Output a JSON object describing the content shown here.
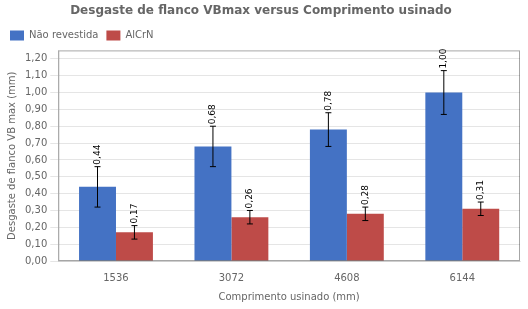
{
  "chart_data": {
    "type": "bar",
    "title": "Desgaste de flanco VBmax versus Comprimento usinado",
    "xlabel": "Comprimento usinado (mm)",
    "ylabel": "Desgaste de flanco VB max (mm)",
    "categories": [
      "1536",
      "3072",
      "4608",
      "6144"
    ],
    "series": [
      {
        "name": "Não revestida",
        "color": "#4472C4",
        "values": [
          0.44,
          0.68,
          0.78,
          1.0
        ],
        "errors": [
          0.12,
          0.12,
          0.1,
          0.13
        ],
        "value_labels": [
          "0,44",
          "0,68",
          "0,78",
          "1,00"
        ]
      },
      {
        "name": "AlCrN",
        "color": "#BE4B48",
        "values": [
          0.17,
          0.26,
          0.28,
          0.31
        ],
        "errors": [
          0.04,
          0.04,
          0.04,
          0.04
        ],
        "value_labels": [
          "0,17",
          "0,26",
          "0,28",
          "0,31"
        ]
      }
    ],
    "ylim": [
      0.0,
      1.25
    ],
    "yticks": [
      {
        "value": 0.0,
        "label": "0,00"
      },
      {
        "value": 0.1,
        "label": "0,10"
      },
      {
        "value": 0.2,
        "label": "0,20"
      },
      {
        "value": 0.3,
        "label": "0,30"
      },
      {
        "value": 0.4,
        "label": "0,40"
      },
      {
        "value": 0.5,
        "label": "0,50"
      },
      {
        "value": 0.6,
        "label": "0,60"
      },
      {
        "value": 0.7,
        "label": "0,70"
      },
      {
        "value": 0.8,
        "label": "0,80"
      },
      {
        "value": 0.9,
        "label": "0,90"
      },
      {
        "value": 1.0,
        "label": "1,00"
      },
      {
        "value": 1.1,
        "label": "1,10"
      },
      {
        "value": 1.2,
        "label": "1,20"
      }
    ],
    "grid": true,
    "legend": "upper left",
    "data_labels": true
  }
}
